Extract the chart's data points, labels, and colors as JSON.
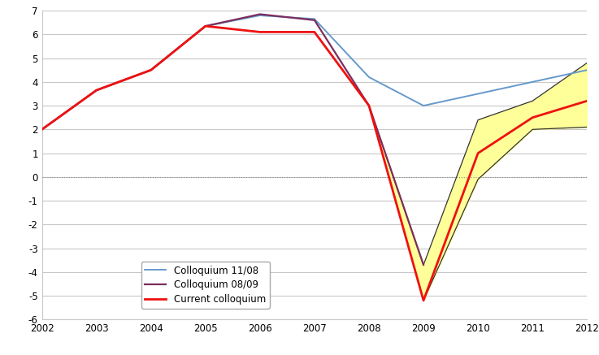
{
  "blue_years": [
    2002,
    2003,
    2004,
    2005,
    2006,
    2007,
    2008,
    2009,
    2010,
    2011,
    2012
  ],
  "blue_values": [
    2.0,
    3.65,
    4.5,
    6.35,
    6.8,
    6.65,
    4.2,
    3.0,
    3.5,
    4.0,
    4.5
  ],
  "dark_years": [
    2002,
    2003,
    2004,
    2005,
    2006,
    2007,
    2008,
    2009
  ],
  "dark_values": [
    2.0,
    3.65,
    4.5,
    6.35,
    6.85,
    6.6,
    3.0,
    -3.7
  ],
  "red_years": [
    2002,
    2003,
    2004,
    2005,
    2006,
    2007,
    2008,
    2009,
    2010,
    2011,
    2012
  ],
  "red_values": [
    2.0,
    3.65,
    4.5,
    6.35,
    6.1,
    6.1,
    3.0,
    -5.2,
    1.0,
    2.5,
    3.2
  ],
  "band_years": [
    2008,
    2009,
    2010,
    2011,
    2012
  ],
  "band_upper": [
    3.0,
    -3.7,
    2.4,
    3.2,
    4.8
  ],
  "band_lower": [
    3.0,
    -5.2,
    -0.1,
    2.0,
    2.1
  ],
  "xlim": [
    2002,
    2012
  ],
  "ylim": [
    -6,
    7
  ],
  "yticks": [
    -6,
    -5,
    -4,
    -3,
    -2,
    -1,
    0,
    1,
    2,
    3,
    4,
    5,
    6,
    7
  ],
  "blue_color": "#6699cc",
  "dark_color": "#7b2d5e",
  "red_color": "#ee1111",
  "band_color": "#ffff99",
  "band_edge_color": "#333333",
  "zero_line_color": "#888888",
  "grid_color": "#c8c8c8",
  "legend_labels": [
    "Colloquium 11/08",
    "Colloquium 08/09",
    "Current colloquium"
  ],
  "bg_color": "#ffffff",
  "fig_bg_color": "#ffffff"
}
